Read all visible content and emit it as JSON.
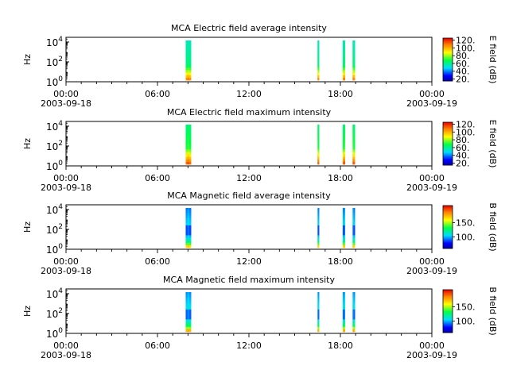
{
  "chart_data": [
    {
      "type": "heatmap",
      "title": "MCA  Electric field average intensity",
      "ylabel": "Hz",
      "y_scale": "log",
      "ylim": [
        1,
        30000
      ],
      "y_ticks": [
        {
          "base": "10",
          "exp": "0",
          "value": 1
        },
        {
          "base": "10",
          "exp": "2",
          "value": 100
        },
        {
          "base": "10",
          "exp": "4",
          "value": 10000
        }
      ],
      "xlim": [
        "2003-09-18 00:00",
        "2003-09-19 00:00"
      ],
      "x_ticks": [
        {
          "time": "00:00",
          "date": "2003-09-18",
          "hour": 0
        },
        {
          "time": "06:00",
          "date": "",
          "hour": 6
        },
        {
          "time": "12:00",
          "date": "",
          "hour": 12
        },
        {
          "time": "18:00",
          "date": "",
          "hour": 18
        },
        {
          "time": "00:00",
          "date": "2003-09-19",
          "hour": 24
        }
      ],
      "colorbar": {
        "label": "E field (dB)",
        "min": 15,
        "max": 125,
        "ticks": [
          20,
          40,
          60,
          80,
          100,
          120
        ]
      },
      "profile": "e_avg",
      "bursts": [
        {
          "start_hour": 7.85,
          "end_hour": 8.2
        },
        {
          "start_hour": 16.5,
          "end_hour": 16.6
        },
        {
          "start_hour": 18.15,
          "end_hour": 18.3
        },
        {
          "start_hour": 18.8,
          "end_hour": 18.95
        }
      ]
    },
    {
      "type": "heatmap",
      "title": "MCA  Electric field maximum intensity",
      "ylabel": "Hz",
      "y_scale": "log",
      "ylim": [
        1,
        30000
      ],
      "y_ticks": [
        {
          "base": "10",
          "exp": "0",
          "value": 1
        },
        {
          "base": "10",
          "exp": "2",
          "value": 100
        },
        {
          "base": "10",
          "exp": "4",
          "value": 10000
        }
      ],
      "xlim": [
        "2003-09-18 00:00",
        "2003-09-19 00:00"
      ],
      "x_ticks": [
        {
          "time": "00:00",
          "date": "2003-09-18",
          "hour": 0
        },
        {
          "time": "06:00",
          "date": "",
          "hour": 6
        },
        {
          "time": "12:00",
          "date": "",
          "hour": 12
        },
        {
          "time": "18:00",
          "date": "",
          "hour": 18
        },
        {
          "time": "00:00",
          "date": "2003-09-19",
          "hour": 24
        }
      ],
      "colorbar": {
        "label": "E field (dB)",
        "min": 15,
        "max": 125,
        "ticks": [
          20,
          40,
          60,
          80,
          100,
          120
        ]
      },
      "profile": "e_max",
      "bursts": [
        {
          "start_hour": 7.85,
          "end_hour": 8.2
        },
        {
          "start_hour": 16.5,
          "end_hour": 16.6
        },
        {
          "start_hour": 18.15,
          "end_hour": 18.3
        },
        {
          "start_hour": 18.8,
          "end_hour": 18.95
        }
      ]
    },
    {
      "type": "heatmap",
      "title": "MCA  Magnetic field average intensity",
      "ylabel": "Hz",
      "y_scale": "log",
      "ylim": [
        1,
        30000
      ],
      "y_ticks": [
        {
          "base": "10",
          "exp": "0",
          "value": 1
        },
        {
          "base": "10",
          "exp": "2",
          "value": 100
        },
        {
          "base": "10",
          "exp": "4",
          "value": 10000
        }
      ],
      "xlim": [
        "2003-09-18 00:00",
        "2003-09-19 00:00"
      ],
      "x_ticks": [
        {
          "time": "00:00",
          "date": "2003-09-18",
          "hour": 0
        },
        {
          "time": "06:00",
          "date": "",
          "hour": 6
        },
        {
          "time": "12:00",
          "date": "",
          "hour": 12
        },
        {
          "time": "18:00",
          "date": "",
          "hour": 18
        },
        {
          "time": "00:00",
          "date": "2003-09-19",
          "hour": 24
        }
      ],
      "colorbar": {
        "label": "B field (dB)",
        "min": 60,
        "max": 210,
        "ticks": [
          100,
          150
        ]
      },
      "profile": "b_avg",
      "bursts": [
        {
          "start_hour": 7.85,
          "end_hour": 8.2
        },
        {
          "start_hour": 16.5,
          "end_hour": 16.6
        },
        {
          "start_hour": 18.15,
          "end_hour": 18.3
        },
        {
          "start_hour": 18.8,
          "end_hour": 18.95
        }
      ]
    },
    {
      "type": "heatmap",
      "title": "MCA  Magnetic field maximum intensity",
      "ylabel": "Hz",
      "y_scale": "log",
      "ylim": [
        1,
        30000
      ],
      "y_ticks": [
        {
          "base": "10",
          "exp": "0",
          "value": 1
        },
        {
          "base": "10",
          "exp": "2",
          "value": 100
        },
        {
          "base": "10",
          "exp": "4",
          "value": 10000
        }
      ],
      "xlim": [
        "2003-09-18 00:00",
        "2003-09-19 00:00"
      ],
      "x_ticks": [
        {
          "time": "00:00",
          "date": "2003-09-18",
          "hour": 0
        },
        {
          "time": "06:00",
          "date": "",
          "hour": 6
        },
        {
          "time": "12:00",
          "date": "",
          "hour": 12
        },
        {
          "time": "18:00",
          "date": "",
          "hour": 18
        },
        {
          "time": "00:00",
          "date": "2003-09-19",
          "hour": 24
        }
      ],
      "colorbar": {
        "label": "B field (dB)",
        "min": 60,
        "max": 210,
        "ticks": [
          100,
          150
        ]
      },
      "profile": "b_max",
      "bursts": [
        {
          "start_hour": 7.85,
          "end_hour": 8.2
        },
        {
          "start_hour": 16.5,
          "end_hour": 16.6
        },
        {
          "start_hour": 18.15,
          "end_hour": 18.3
        },
        {
          "start_hour": 18.8,
          "end_hour": 18.95
        }
      ]
    }
  ]
}
